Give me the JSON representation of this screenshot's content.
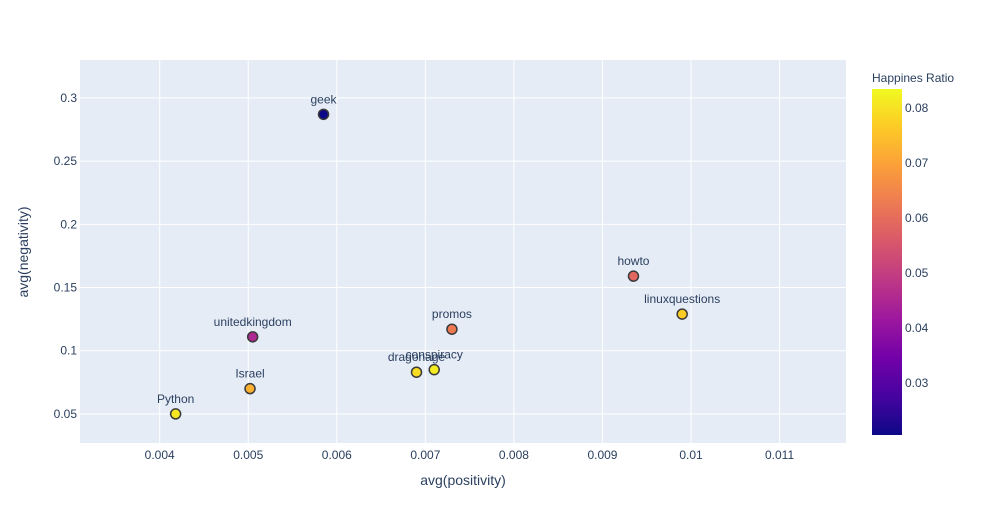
{
  "chart_data": {
    "type": "scatter",
    "title": "",
    "xlabel": "avg(positivity)",
    "ylabel": "avg(negativity)",
    "xlim": [
      0.0031,
      0.01175
    ],
    "ylim": [
      0.027,
      0.33
    ],
    "x_ticks": [
      0.004,
      0.005,
      0.006,
      0.007,
      0.008,
      0.009,
      0.01,
      0.011
    ],
    "x_tick_labels": [
      "0.004",
      "0.005",
      "0.006",
      "0.007",
      "0.008",
      "0.009",
      "0.01",
      "0.011"
    ],
    "y_ticks": [
      0.05,
      0.1,
      0.15,
      0.2,
      0.25,
      0.3
    ],
    "y_tick_labels": [
      "0.05",
      "0.1",
      "0.15",
      "0.2",
      "0.25",
      "0.3"
    ],
    "grid": true,
    "colorbar": {
      "title": "Happines Ratio",
      "range": [
        0.0205,
        0.0835
      ],
      "ticks": [
        0.03,
        0.04,
        0.05,
        0.06,
        0.07,
        0.08
      ],
      "tick_labels": [
        "0.03",
        "0.04",
        "0.05",
        "0.06",
        "0.07",
        "0.08"
      ],
      "colorscale": [
        "#0d0887",
        "#46039f",
        "#7201a8",
        "#9c179e",
        "#bd3786",
        "#d8576b",
        "#ed7953",
        "#fb9f3a",
        "#fdca26",
        "#f0f921"
      ]
    },
    "points": [
      {
        "label": "geek",
        "x": 0.00585,
        "y": 0.287,
        "color_value": 0.0205
      },
      {
        "label": "howto",
        "x": 0.00935,
        "y": 0.159,
        "color_value": 0.0588
      },
      {
        "label": "linuxquestions",
        "x": 0.0099,
        "y": 0.129,
        "color_value": 0.0768
      },
      {
        "label": "promos",
        "x": 0.0073,
        "y": 0.117,
        "color_value": 0.0625
      },
      {
        "label": "unitedkingdom",
        "x": 0.00505,
        "y": 0.111,
        "color_value": 0.0453
      },
      {
        "label": "conspiracy",
        "x": 0.0071,
        "y": 0.085,
        "color_value": 0.0815
      },
      {
        "label": "dragonage",
        "x": 0.0069,
        "y": 0.083,
        "color_value": 0.079
      },
      {
        "label": "Israel",
        "x": 0.00502,
        "y": 0.07,
        "color_value": 0.0722
      },
      {
        "label": "Python",
        "x": 0.00418,
        "y": 0.05,
        "color_value": 0.081
      }
    ]
  }
}
